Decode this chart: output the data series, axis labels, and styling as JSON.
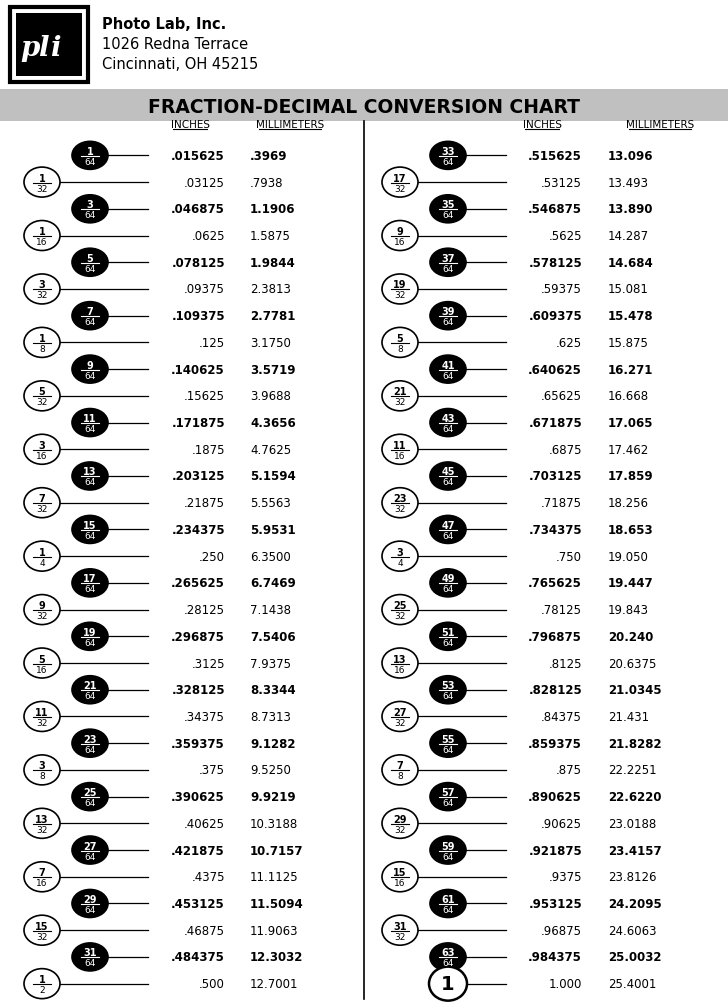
{
  "title": "FRACTION-DECIMAL CONVERSION CHART",
  "header_line1": "Photo Lab, Inc.",
  "header_line2": "1026 Redna Terrace",
  "header_line3": "Cincinnati, OH 45215",
  "left_rows": [
    {
      "num": "1",
      "den": "64",
      "filled": true,
      "inches": ".015625",
      "mm": ".3969",
      "bold": true
    },
    {
      "num": "1",
      "den": "32",
      "filled": false,
      "inches": ".03125",
      "mm": ".7938",
      "bold": false
    },
    {
      "num": "3",
      "den": "64",
      "filled": true,
      "inches": ".046875",
      "mm": "1.1906",
      "bold": true
    },
    {
      "num": "1",
      "den": "16",
      "filled": false,
      "inches": ".0625",
      "mm": "1.5875",
      "bold": false
    },
    {
      "num": "5",
      "den": "64",
      "filled": true,
      "inches": ".078125",
      "mm": "1.9844",
      "bold": true
    },
    {
      "num": "3",
      "den": "32",
      "filled": false,
      "inches": ".09375",
      "mm": "2.3813",
      "bold": false
    },
    {
      "num": "7",
      "den": "64",
      "filled": true,
      "inches": ".109375",
      "mm": "2.7781",
      "bold": true
    },
    {
      "num": "1",
      "den": "8",
      "filled": false,
      "inches": ".125",
      "mm": "3.1750",
      "bold": false
    },
    {
      "num": "9",
      "den": "64",
      "filled": true,
      "inches": ".140625",
      "mm": "3.5719",
      "bold": true
    },
    {
      "num": "5",
      "den": "32",
      "filled": false,
      "inches": ".15625",
      "mm": "3.9688",
      "bold": false
    },
    {
      "num": "11",
      "den": "64",
      "filled": true,
      "inches": ".171875",
      "mm": "4.3656",
      "bold": true
    },
    {
      "num": "3",
      "den": "16",
      "filled": false,
      "inches": ".1875",
      "mm": "4.7625",
      "bold": false
    },
    {
      "num": "13",
      "den": "64",
      "filled": true,
      "inches": ".203125",
      "mm": "5.1594",
      "bold": true
    },
    {
      "num": "7",
      "den": "32",
      "filled": false,
      "inches": ".21875",
      "mm": "5.5563",
      "bold": false
    },
    {
      "num": "15",
      "den": "64",
      "filled": true,
      "inches": ".234375",
      "mm": "5.9531",
      "bold": true
    },
    {
      "num": "1",
      "den": "4",
      "filled": false,
      "inches": ".250",
      "mm": "6.3500",
      "bold": false
    },
    {
      "num": "17",
      "den": "64",
      "filled": true,
      "inches": ".265625",
      "mm": "6.7469",
      "bold": true
    },
    {
      "num": "9",
      "den": "32",
      "filled": false,
      "inches": ".28125",
      "mm": "7.1438",
      "bold": false
    },
    {
      "num": "19",
      "den": "64",
      "filled": true,
      "inches": ".296875",
      "mm": "7.5406",
      "bold": true
    },
    {
      "num": "5",
      "den": "16",
      "filled": false,
      "inches": ".3125",
      "mm": "7.9375",
      "bold": false
    },
    {
      "num": "21",
      "den": "64",
      "filled": true,
      "inches": ".328125",
      "mm": "8.3344",
      "bold": true
    },
    {
      "num": "11",
      "den": "32",
      "filled": false,
      "inches": ".34375",
      "mm": "8.7313",
      "bold": false
    },
    {
      "num": "23",
      "den": "64",
      "filled": true,
      "inches": ".359375",
      "mm": "9.1282",
      "bold": true
    },
    {
      "num": "3",
      "den": "8",
      "filled": false,
      "inches": ".375",
      "mm": "9.5250",
      "bold": false
    },
    {
      "num": "25",
      "den": "64",
      "filled": true,
      "inches": ".390625",
      "mm": "9.9219",
      "bold": true
    },
    {
      "num": "13",
      "den": "32",
      "filled": false,
      "inches": ".40625",
      "mm": "10.3188",
      "bold": false
    },
    {
      "num": "27",
      "den": "64",
      "filled": true,
      "inches": ".421875",
      "mm": "10.7157",
      "bold": true
    },
    {
      "num": "7",
      "den": "16",
      "filled": false,
      "inches": ".4375",
      "mm": "11.1125",
      "bold": false
    },
    {
      "num": "29",
      "den": "64",
      "filled": true,
      "inches": ".453125",
      "mm": "11.5094",
      "bold": true
    },
    {
      "num": "15",
      "den": "32",
      "filled": false,
      "inches": ".46875",
      "mm": "11.9063",
      "bold": false
    },
    {
      "num": "31",
      "den": "64",
      "filled": true,
      "inches": ".484375",
      "mm": "12.3032",
      "bold": true
    },
    {
      "num": "1",
      "den": "2",
      "filled": false,
      "inches": ".500",
      "mm": "12.7001",
      "bold": false
    }
  ],
  "right_rows": [
    {
      "num": "33",
      "den": "64",
      "filled": true,
      "inches": ".515625",
      "mm": "13.096",
      "bold": true
    },
    {
      "num": "17",
      "den": "32",
      "filled": false,
      "inches": ".53125",
      "mm": "13.493",
      "bold": false
    },
    {
      "num": "35",
      "den": "64",
      "filled": true,
      "inches": ".546875",
      "mm": "13.890",
      "bold": true
    },
    {
      "num": "9",
      "den": "16",
      "filled": false,
      "inches": ".5625",
      "mm": "14.287",
      "bold": false
    },
    {
      "num": "37",
      "den": "64",
      "filled": true,
      "inches": ".578125",
      "mm": "14.684",
      "bold": true
    },
    {
      "num": "19",
      "den": "32",
      "filled": false,
      "inches": ".59375",
      "mm": "15.081",
      "bold": false
    },
    {
      "num": "39",
      "den": "64",
      "filled": true,
      "inches": ".609375",
      "mm": "15.478",
      "bold": true
    },
    {
      "num": "5",
      "den": "8",
      "filled": false,
      "inches": ".625",
      "mm": "15.875",
      "bold": false
    },
    {
      "num": "41",
      "den": "64",
      "filled": true,
      "inches": ".640625",
      "mm": "16.271",
      "bold": true
    },
    {
      "num": "21",
      "den": "32",
      "filled": false,
      "inches": ".65625",
      "mm": "16.668",
      "bold": false
    },
    {
      "num": "43",
      "den": "64",
      "filled": true,
      "inches": ".671875",
      "mm": "17.065",
      "bold": true
    },
    {
      "num": "11",
      "den": "16",
      "filled": false,
      "inches": ".6875",
      "mm": "17.462",
      "bold": false
    },
    {
      "num": "45",
      "den": "64",
      "filled": true,
      "inches": ".703125",
      "mm": "17.859",
      "bold": true
    },
    {
      "num": "23",
      "den": "32",
      "filled": false,
      "inches": ".71875",
      "mm": "18.256",
      "bold": false
    },
    {
      "num": "47",
      "den": "64",
      "filled": true,
      "inches": ".734375",
      "mm": "18.653",
      "bold": true
    },
    {
      "num": "3",
      "den": "4",
      "filled": false,
      "inches": ".750",
      "mm": "19.050",
      "bold": false
    },
    {
      "num": "49",
      "den": "64",
      "filled": true,
      "inches": ".765625",
      "mm": "19.447",
      "bold": true
    },
    {
      "num": "25",
      "den": "32",
      "filled": false,
      "inches": ".78125",
      "mm": "19.843",
      "bold": false
    },
    {
      "num": "51",
      "den": "64",
      "filled": true,
      "inches": ".796875",
      "mm": "20.240",
      "bold": true
    },
    {
      "num": "13",
      "den": "16",
      "filled": false,
      "inches": ".8125",
      "mm": "20.6375",
      "bold": false
    },
    {
      "num": "53",
      "den": "64",
      "filled": true,
      "inches": ".828125",
      "mm": "21.0345",
      "bold": true
    },
    {
      "num": "27",
      "den": "32",
      "filled": false,
      "inches": ".84375",
      "mm": "21.431",
      "bold": false
    },
    {
      "num": "55",
      "den": "64",
      "filled": true,
      "inches": ".859375",
      "mm": "21.8282",
      "bold": true
    },
    {
      "num": "7",
      "den": "8",
      "filled": false,
      "inches": ".875",
      "mm": "22.2251",
      "bold": false
    },
    {
      "num": "57",
      "den": "64",
      "filled": true,
      "inches": ".890625",
      "mm": "22.6220",
      "bold": true
    },
    {
      "num": "29",
      "den": "32",
      "filled": false,
      "inches": ".90625",
      "mm": "23.0188",
      "bold": false
    },
    {
      "num": "59",
      "den": "64",
      "filled": true,
      "inches": ".921875",
      "mm": "23.4157",
      "bold": true
    },
    {
      "num": "15",
      "den": "16",
      "filled": false,
      "inches": ".9375",
      "mm": "23.8126",
      "bold": false
    },
    {
      "num": "61",
      "den": "64",
      "filled": true,
      "inches": ".953125",
      "mm": "24.2095",
      "bold": true
    },
    {
      "num": "31",
      "den": "32",
      "filled": false,
      "inches": ".96875",
      "mm": "24.6063",
      "bold": false
    },
    {
      "num": "63",
      "den": "64",
      "filled": true,
      "inches": ".984375",
      "mm": "25.0032",
      "bold": true
    },
    {
      "num": "1",
      "den": "",
      "filled": false,
      "inches": "1.000",
      "mm": "25.4001",
      "bold": false
    }
  ]
}
